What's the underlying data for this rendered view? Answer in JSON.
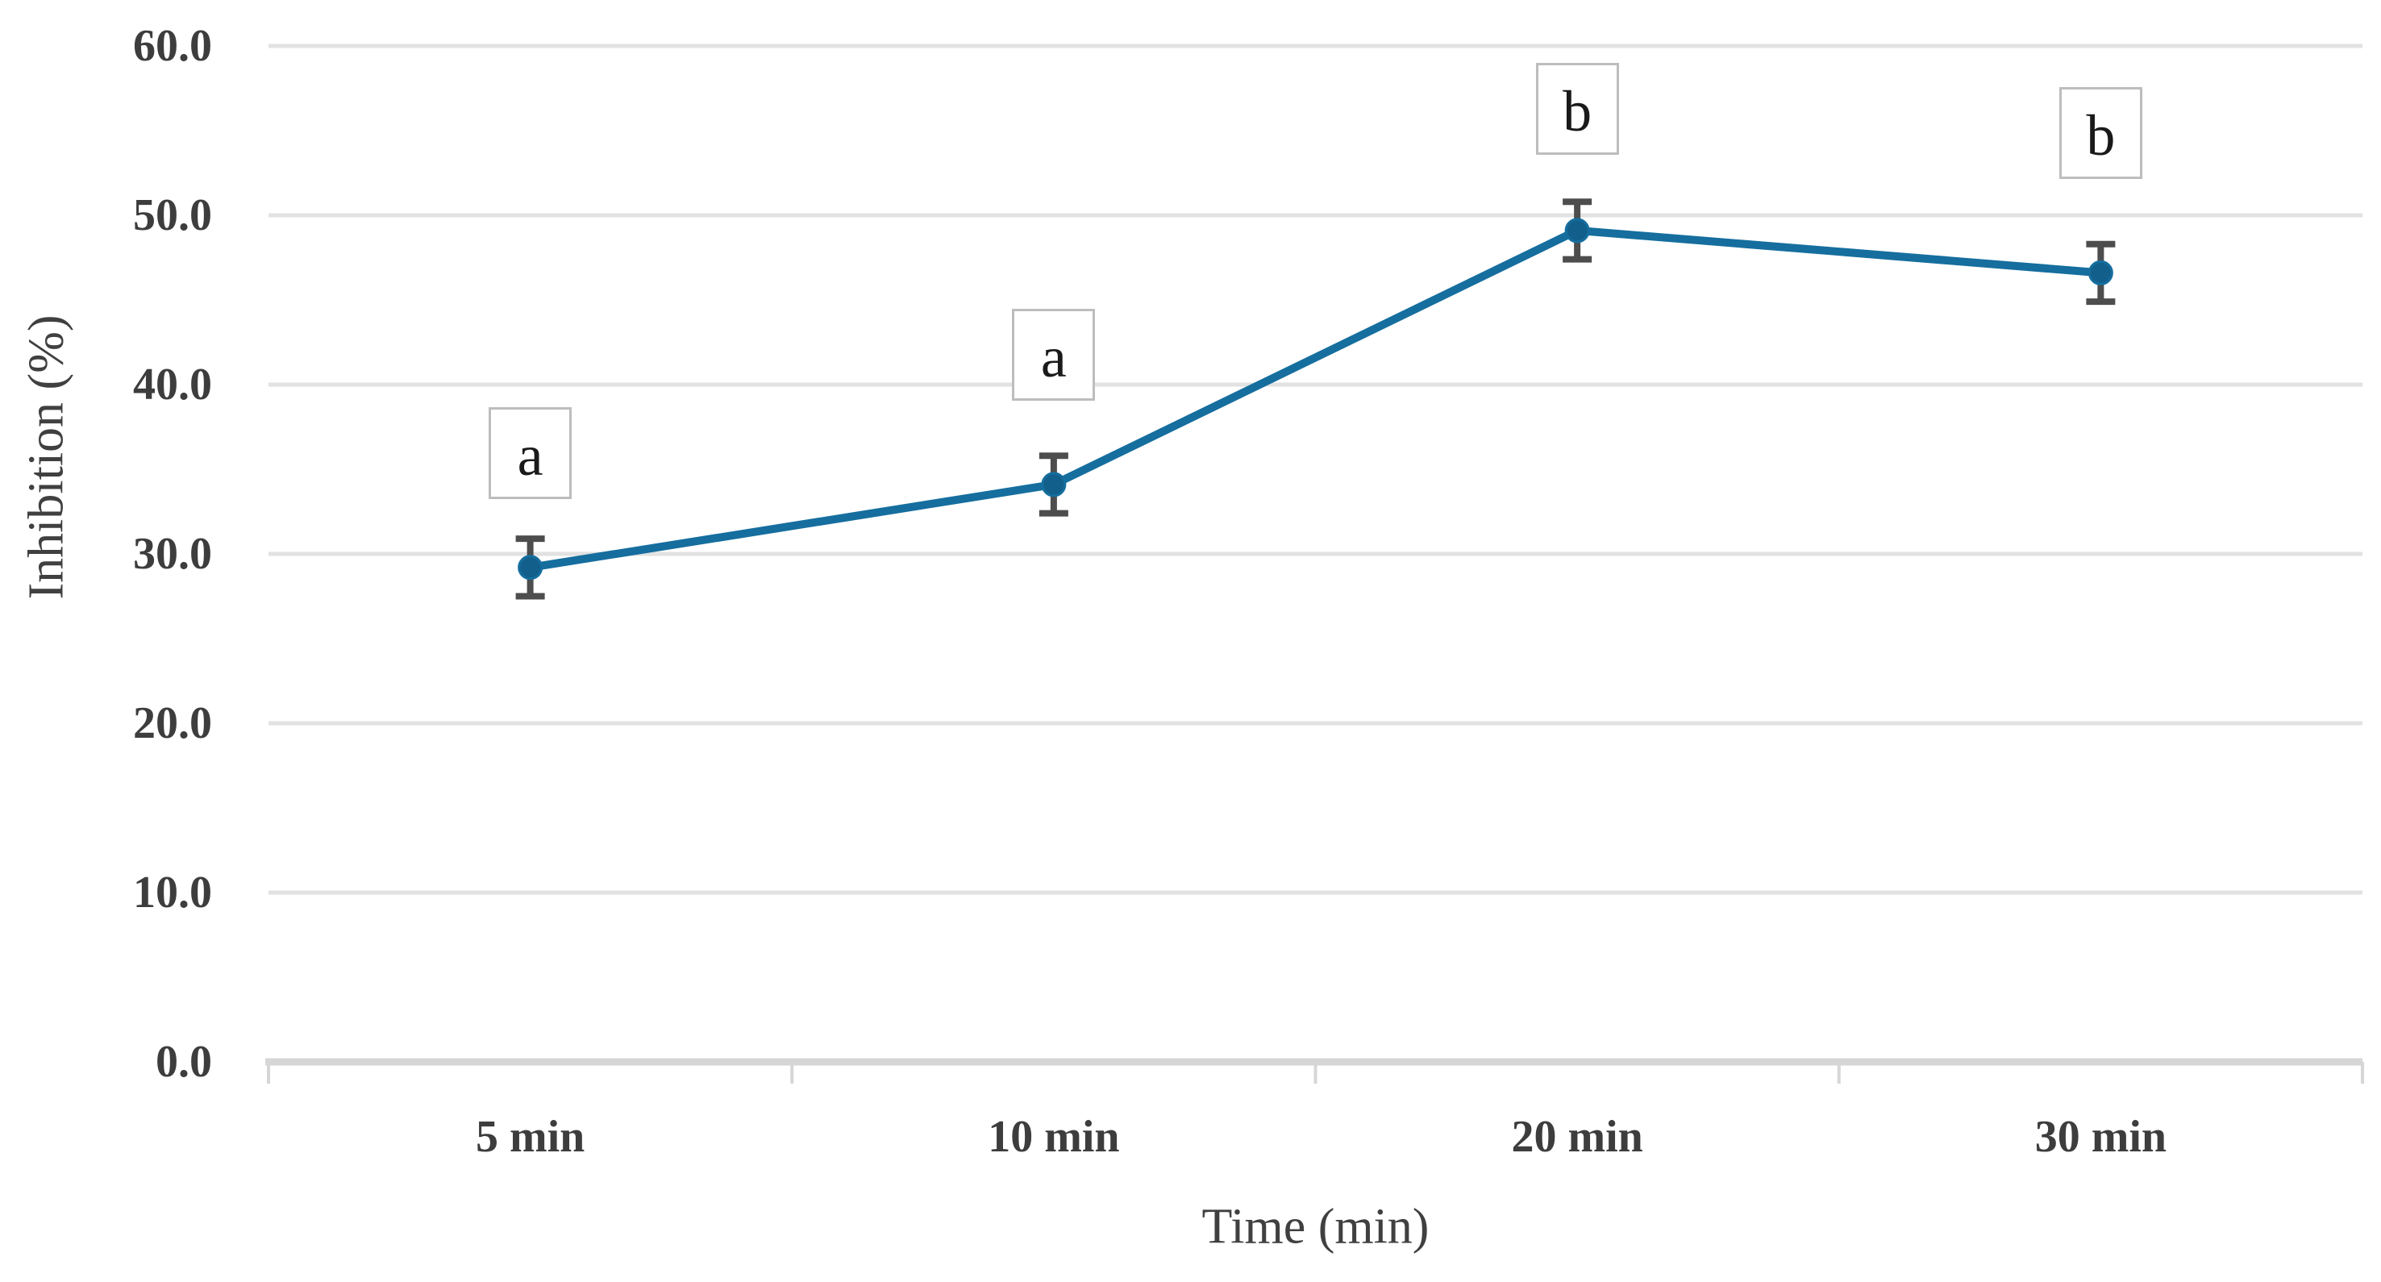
{
  "chart_data": {
    "type": "line",
    "title": "",
    "xlabel": "Time (min)",
    "ylabel": "Inhibition (%)",
    "categories": [
      "5 min",
      "10 min",
      "20 min",
      "30 min"
    ],
    "series": [
      {
        "name": "Inhibition (%)",
        "values": [
          29.2,
          34.1,
          49.1,
          46.6
        ],
        "error_bars": [
          1.7,
          1.7,
          1.7,
          1.7
        ],
        "point_labels": [
          "a",
          "a",
          "b",
          "b"
        ]
      }
    ],
    "ylim": [
      0,
      60
    ],
    "ytick_labels": [
      "0.0",
      "10.0",
      "20.0",
      "30.0",
      "40.0",
      "50.0",
      "60.0"
    ],
    "grid": "horizontal",
    "legend": "none",
    "marker": "circle",
    "error_bar_style": "capped"
  },
  "colors": {
    "series_line": "#156e9e",
    "marker_fill": "#135f8c",
    "error_bar": "#4d4d4d",
    "gridline": "#e2e2e2",
    "axis_line": "#d6d6d6",
    "tick_text": "#3d3d3d",
    "axis_title_text": "#404040",
    "annotation_text": "#1a1a1a",
    "annotation_border": "#bdbdbd",
    "background": "#ffffff"
  }
}
